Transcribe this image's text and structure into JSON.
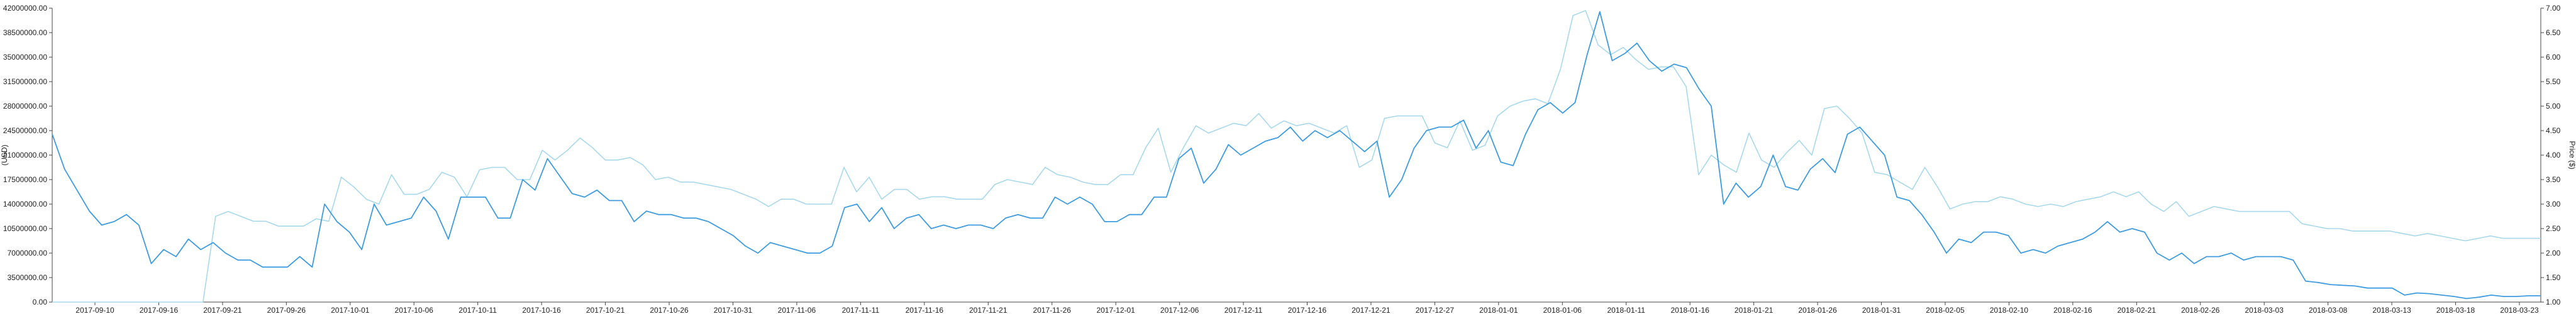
{
  "chart_data": {
    "type": "line",
    "title": "",
    "y_left_label": "(USD)",
    "y_right_label": "Price ($)",
    "y_left_range": [
      0,
      42000000
    ],
    "y_left_ticks": [
      "0.00",
      "3500000.00",
      "7000000.00",
      "10500000.00",
      "14000000.00",
      "17500000.00",
      "21000000.00",
      "24500000.00",
      "28000000.00",
      "31500000.00",
      "35000000.00",
      "38500000.00",
      "42000000.00"
    ],
    "y_right_range": [
      1.0,
      7.0
    ],
    "y_right_ticks": [
      "1.00",
      "1.50",
      "2.00",
      "2.50",
      "3.00",
      "3.50",
      "4.00",
      "4.50",
      "5.00",
      "5.50",
      "6.00",
      "6.50",
      "7.00"
    ],
    "x_ticks": [
      "2017-09-10",
      "2017-09-16",
      "2017-09-21",
      "2017-09-26",
      "2017-10-01",
      "2017-10-06",
      "2017-10-11",
      "2017-10-16",
      "2017-10-21",
      "2017-10-26",
      "2017-10-31",
      "2017-11-06",
      "2017-11-11",
      "2017-11-16",
      "2017-11-21",
      "2017-11-26",
      "2017-12-01",
      "2017-12-06",
      "2017-12-11",
      "2017-12-16",
      "2017-12-21",
      "2017-12-27",
      "2018-01-01",
      "2018-01-06",
      "2018-01-11",
      "2018-01-16",
      "2018-01-21",
      "2018-01-26",
      "2018-01-31",
      "2018-02-05",
      "2018-02-10",
      "2018-02-16",
      "2018-02-21",
      "2018-02-26",
      "2018-03-03",
      "2018-03-08",
      "2018-03-13",
      "2018-03-18",
      "2018-03-23"
    ],
    "grid": false,
    "series": [
      {
        "color": "#3d9be0",
        "axis": "left",
        "values": [
          24000000,
          19000000,
          16000000,
          13000000,
          11000000,
          11500000,
          12500000,
          11000000,
          5500000,
          7500000,
          6500000,
          9000000,
          7500000,
          8500000,
          7000000,
          6000000,
          6000000,
          5000000,
          5000000,
          5000000,
          6500000,
          5000000,
          14000000,
          11500000,
          10000000,
          7500000,
          14000000,
          11000000,
          11500000,
          12000000,
          15000000,
          13000000,
          9000000,
          15000000,
          15000000,
          15000000,
          12000000,
          12000000,
          17500000,
          16000000,
          20500000,
          18000000,
          15500000,
          15000000,
          16000000,
          14500000,
          14500000,
          11500000,
          13000000,
          12500000,
          12500000,
          12000000,
          12000000,
          11500000,
          10500000,
          9500000,
          8000000,
          7000000,
          8500000,
          8000000,
          7500000,
          7000000,
          7000000,
          8000000,
          13500000,
          14000000,
          11500000,
          13500000,
          10500000,
          12000000,
          12500000,
          10500000,
          11000000,
          10500000,
          11000000,
          11000000,
          10500000,
          12000000,
          12500000,
          12000000,
          12000000,
          15000000,
          14000000,
          15000000,
          14000000,
          11500000,
          11500000,
          12500000,
          12500000,
          15000000,
          15000000,
          20500000,
          22000000,
          17000000,
          19000000,
          22500000,
          21000000,
          22000000,
          23000000,
          23500000,
          25000000,
          23000000,
          24500000,
          23500000,
          24500000,
          23000000,
          21500000,
          23000000,
          15000000,
          17500000,
          22000000,
          24500000,
          25000000,
          25000000,
          26000000,
          22000000,
          24500000,
          20000000,
          19500000,
          24000000,
          27500000,
          28500000,
          27000000,
          28500000,
          35500000,
          41500000,
          34500000,
          35500000,
          37000000,
          34500000,
          33000000,
          34000000,
          33500000,
          30500000,
          28000000,
          14000000,
          17000000,
          15000000,
          16500000,
          21000000,
          16500000,
          16000000,
          19000000,
          20500000,
          18500000,
          24000000,
          25000000,
          23000000,
          21000000,
          15000000,
          14500000,
          12500000,
          10000000,
          7000000,
          9000000,
          8500000,
          10000000,
          10000000,
          9500000,
          7000000,
          7500000,
          7000000,
          8000000,
          8500000,
          9000000,
          10000000,
          11500000,
          10000000,
          10500000,
          10000000,
          7000000,
          6000000,
          7000000,
          5500000,
          6500000,
          6500000,
          7000000,
          6000000,
          6500000,
          6500000,
          6500000,
          6000000,
          3000000,
          2800000,
          2500000,
          2400000,
          2300000,
          2000000,
          2000000,
          2000000,
          1000000,
          1300000,
          1200000,
          1000000,
          800000,
          500000,
          700000,
          1000000,
          800000,
          800000,
          900000,
          900000
        ]
      },
      {
        "color": "#a7d8ec",
        "axis": "right",
        "values": [
          1.0,
          1.0,
          1.0,
          1.0,
          1.0,
          1.0,
          1.0,
          1.0,
          1.0,
          1.0,
          1.0,
          1.0,
          1.0,
          2.75,
          2.85,
          2.75,
          2.65,
          2.65,
          2.55,
          2.55,
          2.55,
          2.7,
          2.65,
          3.55,
          3.35,
          3.1,
          3.0,
          3.6,
          3.2,
          3.2,
          3.3,
          3.65,
          3.55,
          3.15,
          3.7,
          3.75,
          3.75,
          3.5,
          3.5,
          4.1,
          3.9,
          4.1,
          4.35,
          4.15,
          3.9,
          3.9,
          3.95,
          3.8,
          3.5,
          3.55,
          3.45,
          3.45,
          3.4,
          3.35,
          3.3,
          3.2,
          3.1,
          2.95,
          3.1,
          3.1,
          3.0,
          3.0,
          3.0,
          3.75,
          3.25,
          3.55,
          3.1,
          3.3,
          3.3,
          3.1,
          3.15,
          3.15,
          3.1,
          3.1,
          3.1,
          3.4,
          3.5,
          3.45,
          3.4,
          3.75,
          3.6,
          3.55,
          3.45,
          3.4,
          3.4,
          3.6,
          3.6,
          4.15,
          4.55,
          3.65,
          4.15,
          4.6,
          4.45,
          4.55,
          4.65,
          4.6,
          4.85,
          4.55,
          4.7,
          4.6,
          4.65,
          4.55,
          4.45,
          4.6,
          3.75,
          3.9,
          4.75,
          4.8,
          4.8,
          4.8,
          4.25,
          4.15,
          4.7,
          4.1,
          4.2,
          4.8,
          5.0,
          5.1,
          5.15,
          5.05,
          5.75,
          6.85,
          6.95,
          6.25,
          6.05,
          6.2,
          5.95,
          5.75,
          5.8,
          5.8,
          5.4,
          3.6,
          4.0,
          3.8,
          3.65,
          4.45,
          3.9,
          3.75,
          4.05,
          4.3,
          4.0,
          4.95,
          5.0,
          4.75,
          4.45,
          3.65,
          3.6,
          3.45,
          3.3,
          3.75,
          3.35,
          2.9,
          3.0,
          3.05,
          3.05,
          3.15,
          3.1,
          3.0,
          2.95,
          3.0,
          2.95,
          3.05,
          3.1,
          3.15,
          3.25,
          3.15,
          3.25,
          3.0,
          2.85,
          3.05,
          2.75,
          2.85,
          2.95,
          2.9,
          2.85,
          2.85,
          2.85,
          2.85,
          2.85,
          2.6,
          2.55,
          2.5,
          2.5,
          2.45,
          2.45,
          2.45,
          2.45,
          2.4,
          2.35,
          2.4,
          2.35,
          2.3,
          2.25,
          2.3,
          2.35,
          2.3,
          2.3,
          2.3,
          2.3
        ]
      }
    ]
  }
}
